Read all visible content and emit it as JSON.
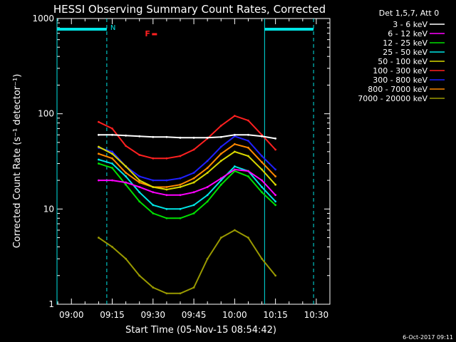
{
  "chart_data": {
    "type": "line",
    "title": "HESSI Observing Summary Count Rates, Corrected",
    "ylabel": "Corrected Count Rate (s⁻¹ detector⁻¹)",
    "xlabel": "Start Time (05-Nov-15 08:54:42)",
    "y_scale": "log",
    "ylim": [
      1,
      1000
    ],
    "xlim": [
      "08:54:42",
      "10:35:00"
    ],
    "x_ticks": [
      "09:00",
      "09:15",
      "09:30",
      "09:45",
      "10:00",
      "10:15",
      "10:30"
    ],
    "y_ticks": [
      "1",
      "10",
      "100",
      "1000"
    ],
    "legend_title": "Det 1,5,7, Att 0",
    "legend_placement": "right",
    "timestamp": "6-Oct-2017 09:11",
    "flags": [
      {
        "label": "N",
        "color": "#00e5e5"
      },
      {
        "label": "F",
        "color": "#ff2020"
      }
    ],
    "night_intervals": [
      [
        "08:54:42",
        "09:13"
      ],
      [
        "10:11",
        "10:29"
      ]
    ],
    "time_points": [
      "09:10",
      "09:15",
      "09:20",
      "09:25",
      "09:30",
      "09:35",
      "09:40",
      "09:45",
      "09:50",
      "09:55",
      "10:00",
      "10:05",
      "10:10",
      "10:15"
    ],
    "series": [
      {
        "name": "3 - 6 keV",
        "color": "#ffffff",
        "values": [
          60,
          60,
          59,
          58,
          57,
          57,
          56,
          56,
          56,
          57,
          60,
          60,
          58,
          55
        ]
      },
      {
        "name": "6 - 12 keV",
        "color": "#ff00ff",
        "values": [
          20,
          20,
          19,
          17,
          15,
          14,
          14,
          15,
          17,
          21,
          26,
          25,
          20,
          14
        ]
      },
      {
        "name": "12 - 25 keV",
        "color": "#00e000",
        "values": [
          30,
          27,
          18,
          12,
          9,
          8,
          8,
          9,
          12,
          18,
          25,
          22,
          15,
          11
        ]
      },
      {
        "name": "25 - 50 keV",
        "color": "#00e5e5",
        "values": [
          33,
          30,
          22,
          15,
          11,
          10,
          10,
          11,
          14,
          20,
          28,
          25,
          17,
          12
        ]
      },
      {
        "name": "50 - 100 keV",
        "color": "#d8d800",
        "values": [
          45,
          38,
          28,
          20,
          17,
          16,
          17,
          19,
          24,
          32,
          40,
          36,
          26,
          18
        ]
      },
      {
        "name": "100 - 300 keV",
        "color": "#ff2020",
        "values": [
          82,
          70,
          46,
          37,
          34,
          34,
          36,
          42,
          55,
          75,
          95,
          85,
          60,
          42
        ]
      },
      {
        "name": "300 - 800 keV",
        "color": "#2020ff",
        "values": [
          44,
          40,
          28,
          22,
          20,
          20,
          21,
          24,
          32,
          45,
          58,
          52,
          36,
          26
        ]
      },
      {
        "name": "800 - 7000 keV",
        "color": "#ff8800",
        "values": [
          38,
          34,
          24,
          19,
          17,
          17,
          18,
          21,
          27,
          38,
          48,
          44,
          31,
          22
        ]
      },
      {
        "name": "7000 - 20000 keV",
        "color": "#999900",
        "values": [
          5,
          4,
          3,
          2,
          1.5,
          1.3,
          1.3,
          1.5,
          3,
          5,
          6,
          5,
          3,
          2
        ]
      }
    ]
  }
}
